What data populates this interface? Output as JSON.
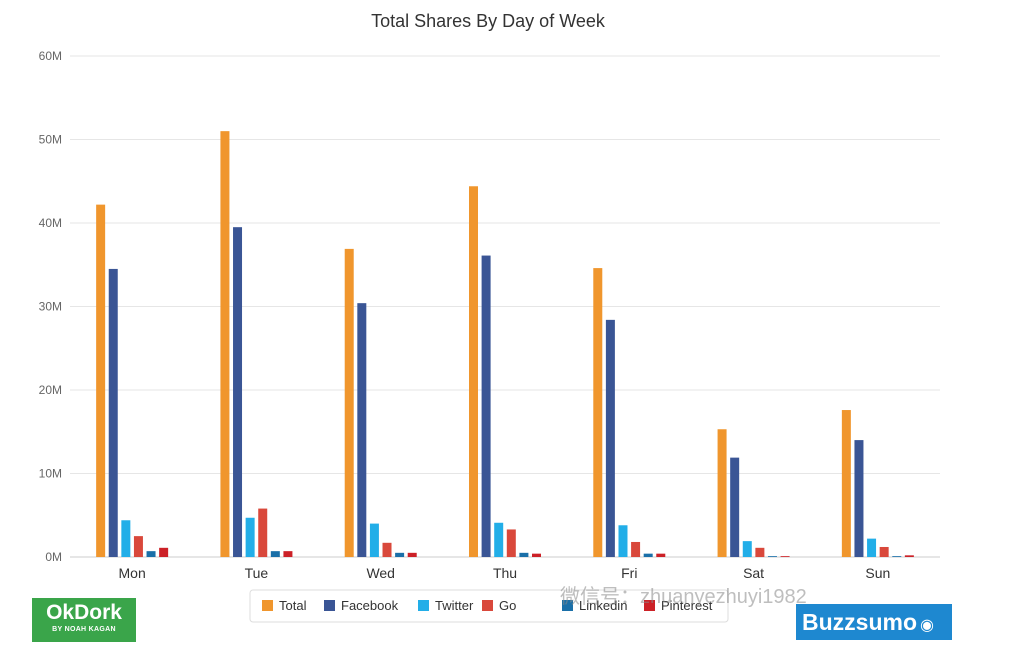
{
  "chart_data": {
    "type": "bar",
    "title": "Total Shares By Day of Week",
    "categories": [
      "Mon",
      "Tue",
      "Wed",
      "Thu",
      "Fri",
      "Sat",
      "Sun"
    ],
    "y_ticks": [
      "0M",
      "10M",
      "20M",
      "30M",
      "40M",
      "50M",
      "60M"
    ],
    "ylim": [
      0,
      60
    ],
    "grid": true,
    "legend_position": "bottom",
    "series": [
      {
        "name": "Total",
        "color": "#f0962d",
        "values": [
          42.2,
          51.0,
          36.9,
          44.4,
          34.6,
          15.3,
          17.6
        ]
      },
      {
        "name": "Facebook",
        "color": "#3a5595",
        "values": [
          34.5,
          39.5,
          30.4,
          36.1,
          28.4,
          11.9,
          14.0
        ]
      },
      {
        "name": "Twitter",
        "color": "#22aee8",
        "values": [
          4.4,
          4.7,
          4.0,
          4.1,
          3.8,
          1.9,
          2.2
        ]
      },
      {
        "name": "Go",
        "color": "#d9483b",
        "values": [
          2.5,
          5.8,
          1.7,
          3.3,
          1.8,
          1.1,
          1.2
        ]
      },
      {
        "name": "Linkedin",
        "color": "#1a6fa8",
        "values": [
          0.7,
          0.7,
          0.5,
          0.5,
          0.4,
          0.1,
          0.1
        ]
      },
      {
        "name": "Pinterest",
        "color": "#cc2127",
        "values": [
          1.1,
          0.7,
          0.5,
          0.4,
          0.4,
          0.1,
          0.2
        ]
      }
    ]
  },
  "watermark": "微信号：zhuanyezhuyi1982",
  "logos": {
    "okdork_main": "OkDork",
    "okdork_sub": "BY NOAH KAGAN",
    "buzzsumo": "Buzzsumo"
  }
}
